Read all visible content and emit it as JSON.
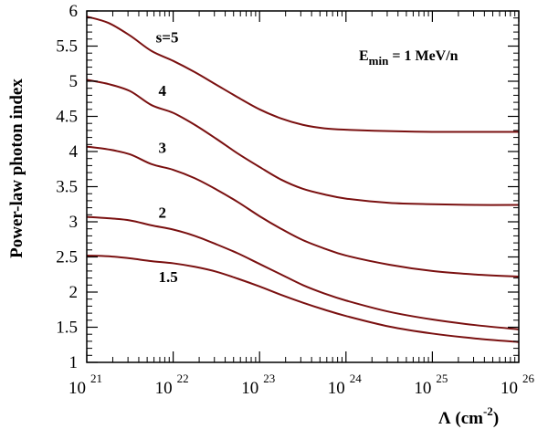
{
  "chart_data": {
    "type": "line",
    "title": "",
    "xlabel": "Λ (cm",
    "xlabel_sup": "-2",
    "xlabel_close": ")",
    "ylabel": "Power-law photon index",
    "xscale": "log",
    "xlim_log10": [
      21,
      26
    ],
    "ylim": [
      1,
      6
    ],
    "x_ticks": [
      {
        "base": "10",
        "exp": "21",
        "log10": 21
      },
      {
        "base": "10",
        "exp": "22",
        "log10": 22
      },
      {
        "base": "10",
        "exp": "23",
        "log10": 23
      },
      {
        "base": "10",
        "exp": "24",
        "log10": 24
      },
      {
        "base": "10",
        "exp": "25",
        "log10": 25
      },
      {
        "base": "10",
        "exp": "26",
        "log10": 26
      }
    ],
    "y_ticks": [
      {
        "label": "1",
        "value": 1
      },
      {
        "label": "1.5",
        "value": 1.5
      },
      {
        "label": "2",
        "value": 2
      },
      {
        "label": "2.5",
        "value": 2.5
      },
      {
        "label": "3",
        "value": 3
      },
      {
        "label": "3.5",
        "value": 3.5
      },
      {
        "label": "4",
        "value": 4
      },
      {
        "label": "4.5",
        "value": 4.5
      },
      {
        "label": "5",
        "value": 5
      },
      {
        "label": "5.5",
        "value": 5.5
      },
      {
        "label": "6",
        "value": 6
      }
    ],
    "annotation": {
      "prefix": "E",
      "subscript": "min",
      "suffix": " = 1 MeV/n"
    },
    "line_color": "#7a1010",
    "series": [
      {
        "name": "s=5",
        "label_at": {
          "log10x": 21.8,
          "y": 5.55
        },
        "log10x": [
          21.0,
          21.25,
          21.5,
          21.75,
          22.0,
          22.25,
          22.5,
          22.75,
          23.0,
          23.25,
          23.5,
          23.75,
          24.0,
          24.5,
          25.0,
          25.5,
          26.0
        ],
        "y": [
          5.92,
          5.83,
          5.65,
          5.43,
          5.29,
          5.13,
          4.95,
          4.77,
          4.6,
          4.47,
          4.38,
          4.33,
          4.31,
          4.29,
          4.28,
          4.28,
          4.28
        ]
      },
      {
        "name": "4",
        "label_at": {
          "log10x": 21.83,
          "y": 4.79
        },
        "log10x": [
          21.0,
          21.25,
          21.5,
          21.75,
          22.0,
          22.25,
          22.5,
          22.75,
          23.0,
          23.25,
          23.5,
          23.75,
          24.0,
          24.5,
          25.0,
          25.5,
          26.0
        ],
        "y": [
          5.02,
          4.96,
          4.86,
          4.66,
          4.55,
          4.38,
          4.18,
          3.97,
          3.78,
          3.6,
          3.47,
          3.39,
          3.33,
          3.27,
          3.25,
          3.24,
          3.24
        ]
      },
      {
        "name": "3",
        "label_at": {
          "log10x": 21.83,
          "y": 3.98
        },
        "log10x": [
          21.0,
          21.25,
          21.5,
          21.75,
          22.0,
          22.25,
          22.5,
          22.75,
          23.0,
          23.25,
          23.5,
          23.75,
          24.0,
          24.5,
          25.0,
          25.5,
          26.0
        ],
        "y": [
          4.07,
          4.03,
          3.96,
          3.82,
          3.74,
          3.62,
          3.46,
          3.28,
          3.08,
          2.9,
          2.74,
          2.62,
          2.52,
          2.39,
          2.3,
          2.25,
          2.22
        ]
      },
      {
        "name": "2",
        "label_at": {
          "log10x": 21.83,
          "y": 3.06
        },
        "log10x": [
          21.0,
          21.25,
          21.5,
          21.75,
          22.0,
          22.25,
          22.5,
          22.75,
          23.0,
          23.25,
          23.5,
          23.75,
          24.0,
          24.5,
          25.0,
          25.5,
          26.0
        ],
        "y": [
          3.07,
          3.05,
          3.02,
          2.95,
          2.89,
          2.8,
          2.68,
          2.55,
          2.4,
          2.25,
          2.1,
          1.98,
          1.88,
          1.72,
          1.61,
          1.53,
          1.47
        ]
      },
      {
        "name": "1.5",
        "label_at": {
          "log10x": 21.83,
          "y": 2.14
        },
        "log10x": [
          21.0,
          21.25,
          21.5,
          21.75,
          22.0,
          22.25,
          22.5,
          22.75,
          23.0,
          23.25,
          23.5,
          23.75,
          24.0,
          24.5,
          25.0,
          25.5,
          26.0
        ],
        "y": [
          2.52,
          2.51,
          2.48,
          2.44,
          2.41,
          2.36,
          2.29,
          2.19,
          2.08,
          1.96,
          1.85,
          1.75,
          1.66,
          1.51,
          1.41,
          1.34,
          1.29
        ]
      }
    ]
  }
}
